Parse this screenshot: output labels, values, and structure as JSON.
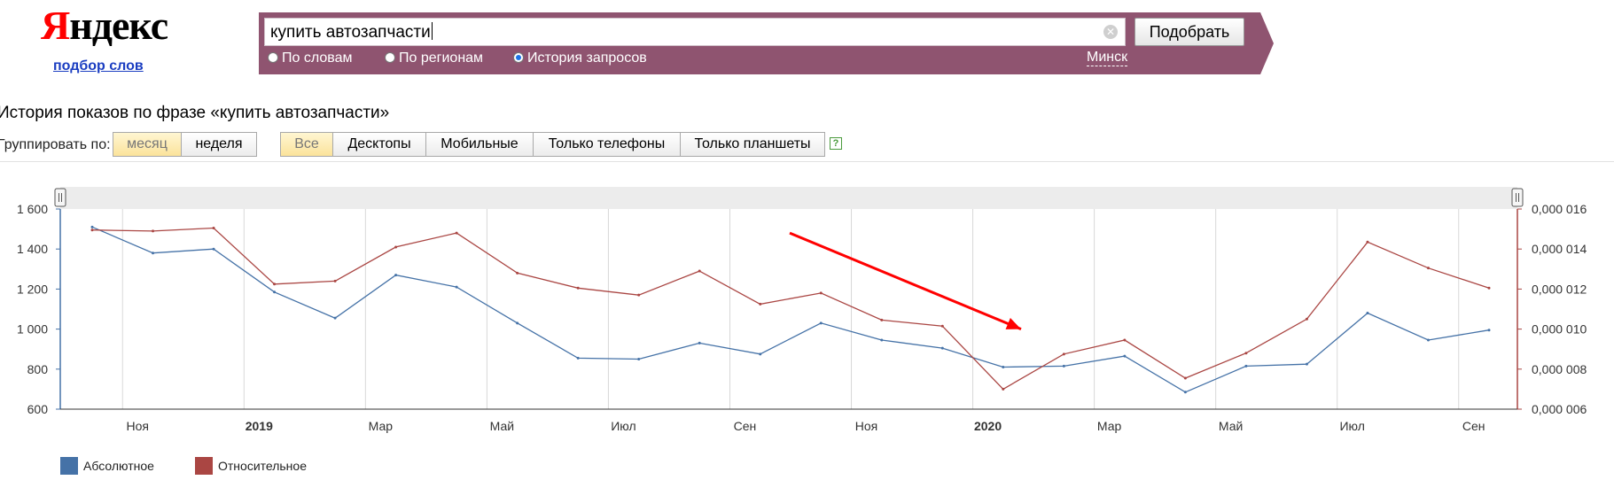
{
  "brand": {
    "logo_first": "Я",
    "logo_rest": "ндекс",
    "sublink": "подбор слов"
  },
  "search": {
    "query": "купить автозапчасти",
    "submit_label": "Подобрать",
    "modes": [
      {
        "label": "По словам",
        "checked": false
      },
      {
        "label": "По регионам",
        "checked": false
      },
      {
        "label": "История запросов",
        "checked": true
      }
    ],
    "region": "Минск"
  },
  "page": {
    "title": "История показов по фразе «купить автозапчасти»"
  },
  "grouping": {
    "label": "Группировать по:",
    "options": [
      {
        "label": "месяц",
        "active": true
      },
      {
        "label": "неделя",
        "active": false
      }
    ]
  },
  "devices": [
    {
      "label": "Все",
      "active": true
    },
    {
      "label": "Десктопы",
      "active": false
    },
    {
      "label": "Мобильные",
      "active": false
    },
    {
      "label": "Только телефоны",
      "active": false
    },
    {
      "label": "Только планшеты",
      "active": false
    }
  ],
  "help_icon": "?",
  "colors": {
    "absolute": "#4572a7",
    "relative": "#aa4643",
    "arrow": "#ff0000",
    "searchbar": "#8f5470"
  },
  "chart_data": {
    "type": "line",
    "x": [
      "2018-10",
      "2018-11",
      "2018-12",
      "2019-01",
      "2019-02",
      "2019-03",
      "2019-04",
      "2019-05",
      "2019-06",
      "2019-07",
      "2019-08",
      "2019-09",
      "2019-10",
      "2019-11",
      "2019-12",
      "2020-01",
      "2020-02",
      "2020-03",
      "2020-04",
      "2020-05",
      "2020-06",
      "2020-07",
      "2020-08",
      "2020-09"
    ],
    "x_tick_labels": [
      "Ноя",
      "2019",
      "Мар",
      "Май",
      "Июл",
      "Сен",
      "Ноя",
      "2020",
      "Мар",
      "Май",
      "Июл",
      "Сен"
    ],
    "series": [
      {
        "name": "Абсолютное",
        "axis": "left",
        "color": "#4572a7",
        "values": [
          1510,
          1380,
          1400,
          1185,
          1055,
          1270,
          1210,
          1030,
          855,
          850,
          930,
          875,
          1030,
          945,
          905,
          810,
          815,
          865,
          685,
          815,
          825,
          1080,
          945,
          995
        ]
      },
      {
        "name": "Относительное",
        "axis": "right",
        "color": "#aa4643",
        "values": [
          0.01495,
          0.0149,
          0.01505,
          0.01225,
          0.0124,
          0.0141,
          0.0148,
          0.0128,
          0.01205,
          0.0117,
          0.0129,
          0.01125,
          0.0118,
          0.01045,
          0.01015,
          0.007,
          0.00875,
          0.00945,
          0.00755,
          0.0088,
          0.0105,
          0.01435,
          0.01305,
          0.01205
        ]
      }
    ],
    "y_left": {
      "ylim": [
        600,
        1600
      ],
      "ticks": [
        600,
        800,
        1000,
        1200,
        1400,
        1600
      ],
      "tick_labels": [
        "600",
        "800",
        "1 000",
        "1 200",
        "1 400",
        "1 600"
      ]
    },
    "y_right": {
      "ylim": [
        0.006,
        0.016
      ],
      "ticks": [
        0.006,
        0.008,
        0.01,
        0.012,
        0.014,
        0.016
      ],
      "tick_labels": [
        "0,000 006",
        "0,000 008",
        "0,000 010",
        "0,000 012",
        "0,000 014",
        "0,000 016"
      ]
    },
    "annotation": {
      "type": "arrow",
      "from": [
        "2019-09-20",
        1480
      ],
      "to": [
        "2020-01-20",
        1000
      ]
    },
    "legend_position": "bottom-left",
    "grid": true
  }
}
